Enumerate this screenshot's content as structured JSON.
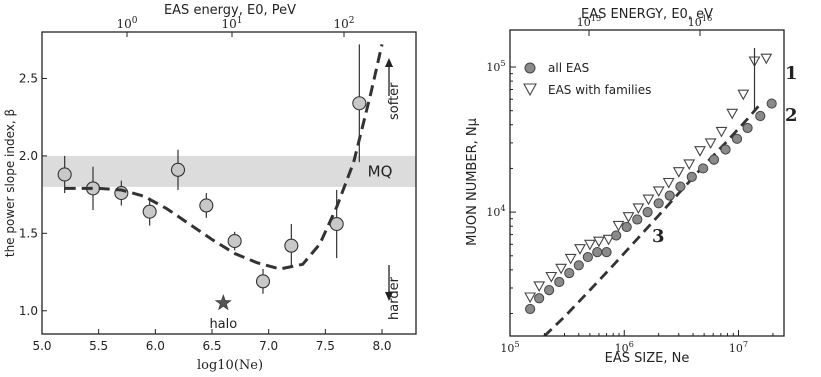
{
  "chart_data": [
    {
      "type": "scatter",
      "title": "",
      "xlabel": "log10(Ne)",
      "ylabel": "the power slope index, β",
      "top_xlabel": "EAS energy,  E0,  PeV",
      "xlim": [
        5.0,
        8.3
      ],
      "ylim": [
        0.85,
        2.8
      ],
      "xticks": [
        "5.0",
        "5.5",
        "6.0",
        "6.5",
        "7.0",
        "7.5",
        "8.0"
      ],
      "yticks": [
        "1.0",
        "1.5",
        "2.0",
        "2.5"
      ],
      "top_ticks": [
        "10^0",
        "10^1",
        "10^2"
      ],
      "grid": false,
      "band": {
        "label": "MQ",
        "y": [
          1.8,
          2.0
        ]
      },
      "points": [
        {
          "x": 5.2,
          "y": 1.88,
          "err": 0.12
        },
        {
          "x": 5.45,
          "y": 1.79,
          "err": 0.14
        },
        {
          "x": 5.7,
          "y": 1.76,
          "err": 0.08
        },
        {
          "x": 5.95,
          "y": 1.64,
          "err": 0.09
        },
        {
          "x": 6.2,
          "y": 1.91,
          "err": 0.13
        },
        {
          "x": 6.45,
          "y": 1.68,
          "err": 0.08
        },
        {
          "x": 6.7,
          "y": 1.45,
          "err": 0.06
        },
        {
          "x": 6.95,
          "y": 1.19,
          "err": 0.08
        },
        {
          "x": 7.2,
          "y": 1.42,
          "err": 0.14
        },
        {
          "x": 7.6,
          "y": 1.56,
          "err": 0.22
        },
        {
          "x": 7.8,
          "y": 2.34,
          "err": 0.38
        }
      ],
      "fit_curve": [
        [
          5.2,
          1.79
        ],
        [
          5.5,
          1.79
        ],
        [
          5.7,
          1.78
        ],
        [
          5.9,
          1.74
        ],
        [
          6.1,
          1.66
        ],
        [
          6.3,
          1.56
        ],
        [
          6.5,
          1.46
        ],
        [
          6.7,
          1.37
        ],
        [
          6.9,
          1.31
        ],
        [
          7.1,
          1.27
        ],
        [
          7.3,
          1.3
        ],
        [
          7.45,
          1.43
        ],
        [
          7.6,
          1.67
        ],
        [
          7.75,
          1.96
        ],
        [
          7.9,
          2.4
        ],
        [
          8.0,
          2.72
        ]
      ],
      "halo": {
        "x": 6.6,
        "y": 1.05,
        "label": "halo"
      },
      "annotations": {
        "softer": "softer",
        "harder": "harder"
      }
    },
    {
      "type": "scatter",
      "title": "",
      "xlabel": "EAS SIZE,  Ne",
      "ylabel": "MUON NUMBER, Nμ",
      "top_xlabel": "EAS ENERGY,  E0, eV",
      "xscale": "log",
      "yscale": "log",
      "xlim": [
        100000,
        25000000
      ],
      "ylim": [
        1400,
        180000
      ],
      "xticks": [
        "10^5",
        "10^6",
        "10^7"
      ],
      "yticks": [
        "10^4",
        "10^5"
      ],
      "top_ticks": [
        "10^15",
        "10^16"
      ],
      "legend": "top-left",
      "series": [
        {
          "name": "all EAS",
          "marker": "circle",
          "x": [
            150000,
            180000,
            220000,
            270000,
            330000,
            400000,
            480000,
            580000,
            700000,
            850000,
            1050000,
            1300000,
            1600000,
            2000000,
            2500000,
            3100000,
            3900000,
            4900000,
            6100000,
            7700000,
            9700000,
            12000000,
            15500000,
            19500000
          ],
          "y": [
            2150,
            2550,
            2900,
            3300,
            3800,
            4300,
            4900,
            5300,
            5300,
            6900,
            7900,
            8900,
            10000,
            11500,
            13000,
            15000,
            17500,
            20000,
            23000,
            27000,
            32000,
            38000,
            46000,
            56000
          ]
        },
        {
          "name": "EAS with families",
          "marker": "triangle",
          "x": [
            150000,
            180000,
            230000,
            280000,
            340000,
            410000,
            500000,
            600000,
            730000,
            890000,
            1090000,
            1330000,
            1630000,
            2000000,
            2450000,
            3000000,
            3700000,
            4600000,
            5700000,
            7100000,
            8800000,
            11000000,
            13800000,
            17500000
          ],
          "y": [
            2600,
            3100,
            3600,
            4100,
            4800,
            5600,
            6000,
            6300,
            6500,
            8100,
            9300,
            10700,
            12300,
            14000,
            16000,
            19000,
            21500,
            26500,
            30000,
            36000,
            48000,
            65000,
            110000,
            115000
          ]
        }
      ],
      "fit_curve": [
        [
          200000,
          1400
        ],
        [
          300000,
          1900
        ],
        [
          500000,
          2900
        ],
        [
          800000,
          4300
        ],
        [
          1200000,
          6100
        ],
        [
          2000000,
          9500
        ],
        [
          3000000,
          13500
        ],
        [
          5000000,
          21000
        ],
        [
          8000000,
          31000
        ],
        [
          12000000,
          44000
        ],
        [
          15000000,
          54000
        ]
      ],
      "curve_labels": {
        "one": "1",
        "two": "2",
        "three": "3"
      }
    }
  ]
}
